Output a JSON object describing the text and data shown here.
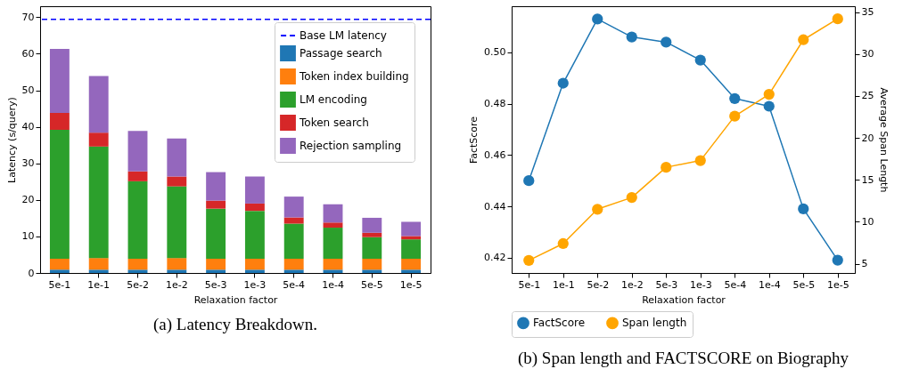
{
  "chart_data": [
    {
      "type": "bar",
      "stacked": true,
      "xlabel": "Relaxation factor",
      "ylabel": "Latency (s/query)",
      "categories": [
        "5e-1",
        "1e-1",
        "5e-2",
        "1e-2",
        "5e-3",
        "1e-3",
        "5e-4",
        "1e-4",
        "5e-5",
        "1e-5"
      ],
      "series": [
        {
          "name": "Passage search",
          "color": "#1f77b4",
          "values": [
            0.9,
            0.9,
            0.9,
            0.9,
            0.9,
            0.9,
            0.9,
            0.9,
            0.9,
            0.9
          ]
        },
        {
          "name": "Token index building",
          "color": "#ff7f0e",
          "values": [
            3.0,
            3.2,
            3.0,
            3.2,
            3.0,
            3.0,
            3.0,
            3.0,
            3.0,
            3.0
          ]
        },
        {
          "name": "LM encoding",
          "color": "#2ca02c",
          "values": [
            35.3,
            30.5,
            21.2,
            19.6,
            13.7,
            13.1,
            9.6,
            8.5,
            5.9,
            5.3
          ]
        },
        {
          "name": "Token search",
          "color": "#d62728",
          "values": [
            4.6,
            3.8,
            2.7,
            2.7,
            2.2,
            2.0,
            1.7,
            1.4,
            1.2,
            0.9
          ]
        },
        {
          "name": "Rejection sampling",
          "color": "#9467bd",
          "values": [
            17.5,
            15.5,
            11.1,
            10.4,
            7.8,
            7.4,
            5.7,
            5.0,
            4.1,
            3.9
          ]
        }
      ],
      "ylim": [
        0,
        73
      ],
      "yticks": [
        0,
        10,
        20,
        30,
        40,
        50,
        60,
        70
      ],
      "ref_lines": [
        {
          "axis": "y",
          "value": 69.4,
          "label": "Base LM latency",
          "color": "#0000ff",
          "line_style": "dashed"
        }
      ],
      "legend": "top right",
      "annotations": [
        "(a) Latency Breakdown."
      ]
    },
    {
      "type": "line",
      "xlabel": "Relaxation factor",
      "ylabel": "FactScore",
      "y2label": "Average Span Length",
      "categories": [
        "5e-1",
        "1e-1",
        "5e-2",
        "1e-2",
        "5e-3",
        "1e-3",
        "5e-4",
        "1e-4",
        "5e-5",
        "1e-5"
      ],
      "series": [
        {
          "name": "FactScore",
          "color": "#1f77b4",
          "values": [
            0.45,
            0.488,
            0.513,
            0.506,
            0.504,
            0.497,
            0.482,
            0.479,
            0.439,
            0.419
          ]
        },
        {
          "name": "Span length",
          "color": "#ffa500",
          "axis": "y2",
          "values": [
            5.4,
            7.4,
            11.5,
            12.9,
            16.5,
            17.3,
            22.6,
            25.2,
            31.7,
            34.2
          ]
        }
      ],
      "ylim": [
        0.414,
        0.518
      ],
      "yticks": [
        0.42,
        0.44,
        0.46,
        0.48,
        {
          "value": 0.5,
          "label": "0.50"
        }
      ],
      "y2lim": [
        3.9,
        35.7
      ],
      "y2ticks": [
        5,
        10,
        15,
        20,
        25,
        30,
        35
      ],
      "marker": "circle",
      "line_style": "solid",
      "legend": "bottom",
      "annotations": [
        "(b) Span length and FACTSCORE on Biography"
      ]
    }
  ]
}
